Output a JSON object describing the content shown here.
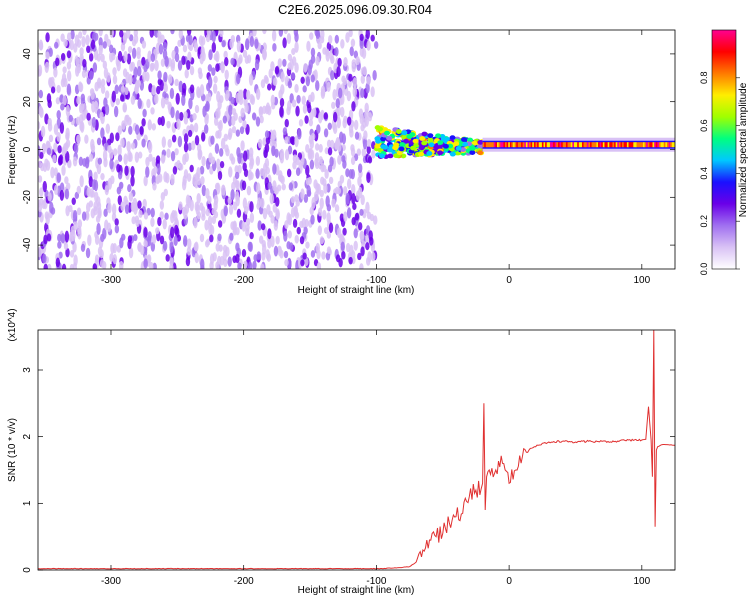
{
  "figure": {
    "title": "C2E6.2025.096.09.30.R04"
  },
  "colors": {
    "snr_line": "#e03030",
    "spectrogram_cmap": [
      "#ffffff",
      "#d9c2f5",
      "#a070f0",
      "#6a00e8",
      "#1a10ff",
      "#00c8ff",
      "#00ff80",
      "#a0ff00",
      "#ffee00",
      "#ff7a00",
      "#ff0000",
      "#ff0090"
    ]
  },
  "chart_data": [
    {
      "type": "heatmap",
      "panel": "spectrogram",
      "xlabel": "Height of straight line (km)",
      "ylabel": "Frequency (Hz)",
      "xlim": [
        -355,
        125
      ],
      "ylim": [
        -50,
        50
      ],
      "xticks": [
        -300,
        -200,
        -100,
        0,
        100
      ],
      "yticks": [
        -40,
        -20,
        0,
        20,
        40
      ],
      "colorbar": {
        "label": "Normalized spectral amplitude",
        "range": [
          0,
          1
        ],
        "ticks": [
          "0.0",
          "0.2",
          "0.4",
          "0.6",
          "0.8"
        ]
      },
      "features": [
        {
          "region": "broadband noise",
          "x_range": [
            -355,
            -100
          ],
          "freq_range": [
            -50,
            50
          ],
          "amplitude": [
            0.05,
            0.3
          ]
        },
        {
          "region": "scattered signal",
          "x_range": [
            -100,
            -20
          ],
          "freq_center": 3,
          "freq_spread": 8,
          "amplitude": [
            0.2,
            0.8
          ]
        },
        {
          "region": "carrier line",
          "x_range": [
            -20,
            125
          ],
          "freq_center": 2,
          "amplitude": [
            0.7,
            1.0
          ]
        }
      ]
    },
    {
      "type": "line",
      "panel": "snr",
      "xlabel": "Height of straight line (km)",
      "ylabel": "SNR (10 * v/v)",
      "yscale_label": "(x10^4)",
      "xlim": [
        -355,
        125
      ],
      "ylim": [
        0,
        3.6
      ],
      "xticks": [
        -300,
        -200,
        -100,
        0,
        100
      ],
      "yticks": [
        0,
        1,
        2,
        3
      ],
      "series": [
        {
          "x": [
            -355,
            -200,
            -105,
            -100,
            -95,
            -90,
            -85,
            -80,
            -75,
            -70,
            -65,
            -60,
            -55,
            -50,
            -45,
            -40,
            -35,
            -30,
            -25,
            -20,
            -19,
            -18,
            -17,
            -15,
            -10,
            -5,
            0,
            5,
            10,
            15,
            20,
            25,
            30,
            40,
            50,
            60,
            70,
            80,
            90,
            100,
            103,
            105,
            107,
            108,
            109,
            110,
            111,
            112,
            115,
            120,
            125
          ],
          "y": [
            0.02,
            0.02,
            0.02,
            0.02,
            0.02,
            0.03,
            0.03,
            0.04,
            0.05,
            0.12,
            0.3,
            0.45,
            0.5,
            0.55,
            0.7,
            0.8,
            0.85,
            1.1,
            1.2,
            1.3,
            2.5,
            0.9,
            1.4,
            1.5,
            1.5,
            1.6,
            1.3,
            1.5,
            1.7,
            1.8,
            1.85,
            1.9,
            1.92,
            1.93,
            1.92,
            1.93,
            1.93,
            1.93,
            1.95,
            1.95,
            1.96,
            2.45,
            1.95,
            1.4,
            3.6,
            0.65,
            1.8,
            1.85,
            1.88,
            1.88,
            1.87
          ]
        }
      ]
    }
  ]
}
